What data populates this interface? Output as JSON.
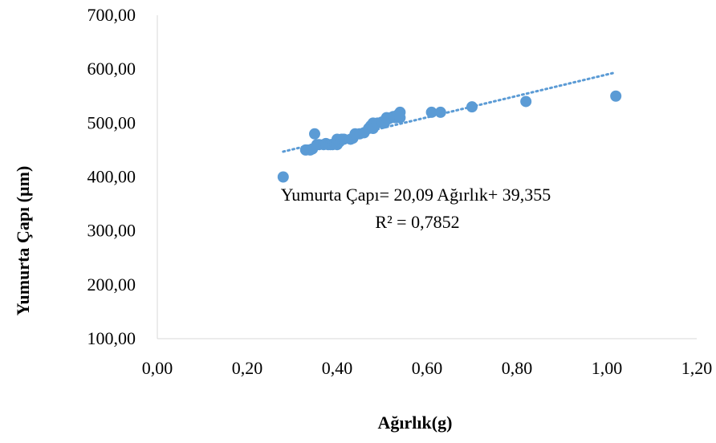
{
  "chart_data": {
    "type": "scatter",
    "xlabel": "Ağırlık(g)",
    "ylabel": "Yumurta Çapı (µm)",
    "xlim": [
      0,
      1.2
    ],
    "ylim": [
      100,
      700
    ],
    "x_ticks": [
      "0,00",
      "0,20",
      "0,40",
      "0,60",
      "0,80",
      "1,00",
      "1,20"
    ],
    "y_ticks": [
      "100,00",
      "200,00",
      "300,00",
      "400,00",
      "500,00",
      "600,00",
      "700,00"
    ],
    "grid": false,
    "marker_color": "#5b9bd5",
    "trendline_color": "#5b9bd5",
    "trendline": {
      "type": "linear",
      "x_range": [
        0.28,
        1.02
      ],
      "y_range": [
        447,
        594
      ],
      "equation": "Yumurta Çapı= 20,09 Ağırlık+ 39,355",
      "r2": "R² = 0,7852"
    },
    "series": [
      {
        "points": [
          [
            0.28,
            400
          ],
          [
            0.33,
            450
          ],
          [
            0.34,
            450
          ],
          [
            0.345,
            452
          ],
          [
            0.35,
            480
          ],
          [
            0.355,
            460
          ],
          [
            0.36,
            460
          ],
          [
            0.37,
            460
          ],
          [
            0.375,
            462
          ],
          [
            0.38,
            460
          ],
          [
            0.385,
            460
          ],
          [
            0.39,
            460
          ],
          [
            0.395,
            462
          ],
          [
            0.4,
            470
          ],
          [
            0.4,
            460
          ],
          [
            0.405,
            465
          ],
          [
            0.41,
            470
          ],
          [
            0.415,
            470
          ],
          [
            0.43,
            470
          ],
          [
            0.435,
            472
          ],
          [
            0.44,
            480
          ],
          [
            0.45,
            480
          ],
          [
            0.46,
            482
          ],
          [
            0.47,
            490
          ],
          [
            0.475,
            495
          ],
          [
            0.48,
            500
          ],
          [
            0.48,
            490
          ],
          [
            0.49,
            500
          ],
          [
            0.5,
            502
          ],
          [
            0.505,
            500
          ],
          [
            0.51,
            510
          ],
          [
            0.515,
            508
          ],
          [
            0.52,
            510
          ],
          [
            0.525,
            512
          ],
          [
            0.53,
            510
          ],
          [
            0.535,
            515
          ],
          [
            0.54,
            520
          ],
          [
            0.54,
            510
          ],
          [
            0.61,
            520
          ],
          [
            0.63,
            520
          ],
          [
            0.7,
            530
          ],
          [
            0.82,
            540
          ],
          [
            1.02,
            550
          ]
        ]
      }
    ]
  }
}
